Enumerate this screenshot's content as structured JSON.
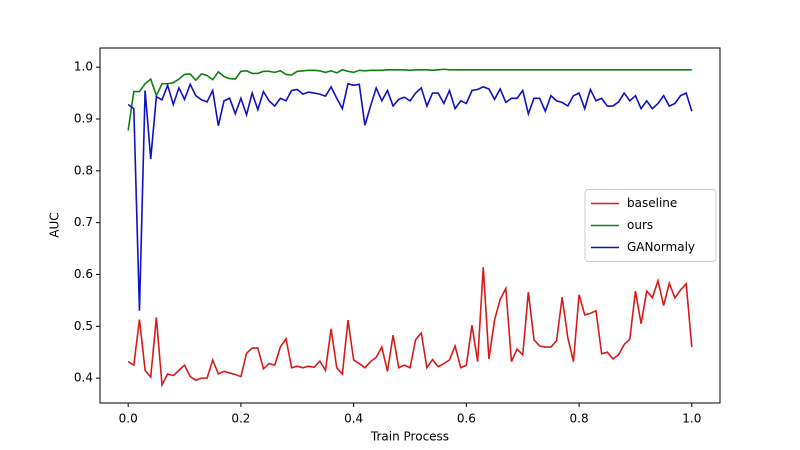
{
  "chart_data": {
    "type": "line",
    "xlabel": "Train Process",
    "ylabel": "AUC",
    "x": [
      0,
      0.01,
      0.02,
      0.03,
      0.04,
      0.05,
      0.06,
      0.07,
      0.08,
      0.09,
      0.1,
      0.11,
      0.12,
      0.13,
      0.14,
      0.15,
      0.16,
      0.17,
      0.18,
      0.19,
      0.2,
      0.21,
      0.22,
      0.23,
      0.24,
      0.25,
      0.26,
      0.27,
      0.28,
      0.29,
      0.3,
      0.31,
      0.32,
      0.33,
      0.34,
      0.35,
      0.36,
      0.37,
      0.38,
      0.39,
      0.4,
      0.41,
      0.42,
      0.43,
      0.44,
      0.45,
      0.46,
      0.47,
      0.48,
      0.49,
      0.5,
      0.51,
      0.52,
      0.53,
      0.54,
      0.55,
      0.56,
      0.57,
      0.58,
      0.59,
      0.6,
      0.61,
      0.62,
      0.63,
      0.64,
      0.65,
      0.66,
      0.67,
      0.68,
      0.69,
      0.7,
      0.71,
      0.72,
      0.73,
      0.74,
      0.75,
      0.76,
      0.77,
      0.78,
      0.79,
      0.8,
      0.81,
      0.82,
      0.83,
      0.84,
      0.85,
      0.86,
      0.87,
      0.88,
      0.89,
      0.9,
      0.91,
      0.92,
      0.93,
      0.94,
      0.95,
      0.96,
      0.97,
      0.98,
      0.99,
      1
    ],
    "series": [
      {
        "name": "baseline",
        "color": "#d81a1a",
        "values": [
          0.432,
          0.425,
          0.513,
          0.415,
          0.402,
          0.517,
          0.387,
          0.408,
          0.405,
          0.415,
          0.425,
          0.403,
          0.396,
          0.4,
          0.4,
          0.435,
          0.408,
          0.413,
          0.41,
          0.407,
          0.403,
          0.448,
          0.458,
          0.458,
          0.418,
          0.428,
          0.425,
          0.46,
          0.476,
          0.42,
          0.423,
          0.42,
          0.423,
          0.421,
          0.433,
          0.415,
          0.495,
          0.42,
          0.408,
          0.512,
          0.435,
          0.428,
          0.42,
          0.432,
          0.44,
          0.46,
          0.413,
          0.483,
          0.42,
          0.425,
          0.42,
          0.474,
          0.487,
          0.42,
          0.436,
          0.422,
          0.428,
          0.435,
          0.462,
          0.42,
          0.425,
          0.502,
          0.432,
          0.614,
          0.437,
          0.512,
          0.552,
          0.573,
          0.432,
          0.456,
          0.445,
          0.566,
          0.474,
          0.462,
          0.46,
          0.46,
          0.472,
          0.556,
          0.478,
          0.432,
          0.561,
          0.522,
          0.525,
          0.53,
          0.447,
          0.45,
          0.437,
          0.445,
          0.465,
          0.475,
          0.568,
          0.505,
          0.568,
          0.555,
          0.588,
          0.54,
          0.583,
          0.555,
          0.57,
          0.582,
          0.46
        ]
      },
      {
        "name": "ours",
        "color": "#108010",
        "values": [
          0.878,
          0.953,
          0.953,
          0.968,
          0.977,
          0.945,
          0.968,
          0.968,
          0.97,
          0.977,
          0.986,
          0.987,
          0.975,
          0.987,
          0.984,
          0.976,
          0.991,
          0.982,
          0.978,
          0.977,
          0.992,
          0.993,
          0.988,
          0.988,
          0.992,
          0.992,
          0.99,
          0.993,
          0.986,
          0.985,
          0.992,
          0.993,
          0.994,
          0.994,
          0.993,
          0.99,
          0.993,
          0.989,
          0.995,
          0.992,
          0.99,
          0.994,
          0.993,
          0.994,
          0.994,
          0.994,
          0.995,
          0.995,
          0.995,
          0.995,
          0.994,
          0.995,
          0.995,
          0.995,
          0.994,
          0.995,
          0.996,
          0.995,
          0.995,
          0.995,
          0.995,
          0.995,
          0.995,
          0.995,
          0.995,
          0.995,
          0.995,
          0.995,
          0.995,
          0.995,
          0.995,
          0.995,
          0.995,
          0.995,
          0.995,
          0.995,
          0.995,
          0.995,
          0.995,
          0.995,
          0.995,
          0.995,
          0.995,
          0.995,
          0.995,
          0.995,
          0.995,
          0.995,
          0.995,
          0.995,
          0.995,
          0.995,
          0.995,
          0.995,
          0.995,
          0.995,
          0.995,
          0.995,
          0.995,
          0.995,
          0.995
        ]
      },
      {
        "name": "GANormaly",
        "color": "#1010c8",
        "values": [
          0.928,
          0.92,
          0.53,
          0.955,
          0.823,
          0.943,
          0.937,
          0.965,
          0.928,
          0.96,
          0.938,
          0.967,
          0.945,
          0.937,
          0.933,
          0.955,
          0.887,
          0.935,
          0.94,
          0.91,
          0.94,
          0.908,
          0.95,
          0.918,
          0.953,
          0.935,
          0.925,
          0.94,
          0.935,
          0.955,
          0.957,
          0.948,
          0.952,
          0.95,
          0.948,
          0.944,
          0.962,
          0.94,
          0.92,
          0.968,
          0.965,
          0.967,
          0.888,
          0.925,
          0.96,
          0.935,
          0.955,
          0.925,
          0.938,
          0.942,
          0.935,
          0.95,
          0.96,
          0.925,
          0.95,
          0.95,
          0.93,
          0.955,
          0.92,
          0.935,
          0.93,
          0.955,
          0.957,
          0.962,
          0.958,
          0.938,
          0.958,
          0.932,
          0.94,
          0.94,
          0.955,
          0.91,
          0.94,
          0.94,
          0.915,
          0.945,
          0.935,
          0.932,
          0.925,
          0.945,
          0.95,
          0.92,
          0.957,
          0.935,
          0.94,
          0.925,
          0.925,
          0.933,
          0.95,
          0.935,
          0.945,
          0.92,
          0.935,
          0.92,
          0.93,
          0.945,
          0.925,
          0.93,
          0.945,
          0.95,
          0.915
        ]
      }
    ],
    "xlim": [
      -0.05,
      1.05
    ],
    "ylim": [
      0.352,
      1.037
    ],
    "xticks": [
      {
        "value": 0,
        "label": "0.0"
      },
      0.2,
      0.4,
      0.6,
      0.8,
      {
        "value": 1,
        "label": "1.0"
      }
    ],
    "yticks": [
      0.4,
      0.5,
      0.6,
      0.7,
      0.8,
      0.9,
      {
        "value": 1,
        "label": "1.0"
      }
    ],
    "legend": "center right"
  }
}
